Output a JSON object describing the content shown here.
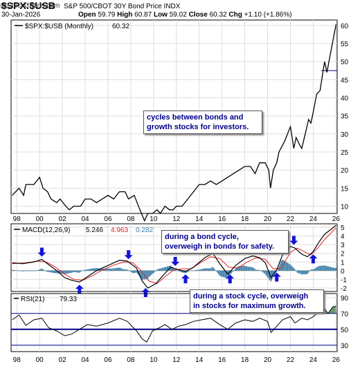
{
  "header": {
    "ticker": "$SPX:$USB",
    "name": "S&P 500/CBOT 30Y Bond Price INDX",
    "credit": "@StockCharts.com",
    "date": "30-Jan-2026",
    "open_label": "Open",
    "open": "59.79",
    "high_label": "High",
    "high": "60.87",
    "low_label": "Low",
    "low": "59.02",
    "close_label": "Close",
    "close": "60.32",
    "chg_label": "Chg",
    "chg": "+1.10 (+1.86%)"
  },
  "annotations": {
    "cycles": [
      "cycles between bonds and",
      "growth stocks for investors."
    ],
    "bond_cycle": [
      "during a bond cycle,",
      "overweigh in bonds for safety."
    ],
    "stock_cycle": [
      "during a stock cycle, overweigh",
      "in stocks for maximum growth."
    ]
  },
  "colors": {
    "price": "#000000",
    "macd": "#000000",
    "signal": "#e02020",
    "histogram": "#3a7ea8",
    "rsi": "#000000",
    "rsi_fill": "#6e9a6e",
    "arrow": "#1414d8",
    "horizontal_line": "#00008b",
    "grid": "#dddddd"
  },
  "chart_data": [
    {
      "type": "line",
      "title": "$SPX:$USB (Monthly) 60.32",
      "legend_label": "$SPX:$USB (Monthly)",
      "legend_value": "60.32",
      "x_ticks": [
        "98",
        "00",
        "02",
        "04",
        "06",
        "08",
        "10",
        "12",
        "14",
        "16",
        "18",
        "20",
        "22",
        "24",
        "26"
      ],
      "y_ticks": [
        10,
        15,
        20,
        25,
        30,
        35,
        40,
        45,
        50,
        55,
        60
      ],
      "ylim": [
        8,
        61.5
      ],
      "xlim": [
        1997.5,
        2026.1
      ],
      "grid": true,
      "horizontal_line": 47.5,
      "series": [
        {
          "x": [
            1997.6,
            1998.2,
            1998.6,
            1998.8,
            1999.5,
            2000.0,
            2000.3,
            2000.7,
            2001.0,
            2001.5,
            2001.8,
            2002.3,
            2002.6,
            2003.0,
            2003.6,
            2004.0,
            2004.5,
            2005.0,
            2005.5,
            2006.0,
            2006.5,
            2007.0,
            2007.5,
            2007.8,
            2008.3,
            2008.8,
            2009.2,
            2009.5,
            2009.9,
            2010.3,
            2010.6,
            2011.0,
            2011.4,
            2011.7,
            2012.0,
            2012.5,
            2013.0,
            2013.5,
            2014.0,
            2014.5,
            2015.0,
            2015.5,
            2016.0,
            2016.5,
            2017.0,
            2017.5,
            2018.0,
            2018.5,
            2018.9,
            2019.3,
            2019.8,
            2020.1,
            2020.25,
            2020.5,
            2020.8,
            2021.0,
            2021.5,
            2022.0,
            2022.3,
            2022.5,
            2022.8,
            2023.0,
            2023.3,
            2023.6,
            2023.8,
            2024.0,
            2024.3,
            2024.6,
            2024.9,
            2025.0,
            2025.2,
            2025.5,
            2025.8,
            2026.0
          ],
          "y": [
            13,
            15,
            13,
            16,
            16,
            18,
            15,
            14,
            12,
            11,
            12,
            10,
            9,
            10,
            10,
            12,
            12,
            11,
            12,
            13,
            12,
            14,
            14,
            12,
            13,
            9,
            6,
            8,
            8,
            9,
            8,
            10,
            9,
            9,
            10,
            10,
            12,
            14,
            16,
            16,
            17,
            16,
            17,
            18,
            19,
            20,
            21,
            21,
            19,
            22,
            22,
            20,
            15,
            20,
            22,
            25,
            28,
            32,
            26,
            29,
            27,
            26,
            30,
            34,
            33,
            36,
            41,
            42,
            48,
            50,
            47,
            52,
            57,
            60.3
          ]
        }
      ]
    },
    {
      "type": "line",
      "title": "MACD(12,26,9) 5.246, 4.963, 0.282",
      "indicator_label": "MACD(12,26,9)",
      "macd_value": "5.246",
      "signal_value": "4.963",
      "histogram_value": "0.282",
      "x_ticks": [
        "98",
        "00",
        "02",
        "04",
        "06",
        "08",
        "10",
        "12",
        "14",
        "16",
        "18",
        "20",
        "22",
        "24",
        "26"
      ],
      "y_ticks": [
        -2,
        -1,
        0,
        1,
        2,
        3,
        4,
        5
      ],
      "ylim": [
        -2.4,
        5.4
      ],
      "xlim": [
        1997.5,
        2026.1
      ],
      "series": [
        {
          "name": "MACD",
          "x": [
            1997.6,
            1998.5,
            1999.5,
            2000.2,
            2000.8,
            2001.5,
            2002.2,
            2002.8,
            2003.5,
            2004.2,
            2005.0,
            2006.0,
            2007.0,
            2007.7,
            2008.5,
            2009.0,
            2009.5,
            2010.2,
            2011.0,
            2011.5,
            2012.2,
            2012.8,
            2013.5,
            2014.5,
            2015.2,
            2015.8,
            2016.5,
            2017.2,
            2018.0,
            2018.7,
            2019.3,
            2019.8,
            2020.3,
            2020.8,
            2021.3,
            2022.0,
            2022.4,
            2023.0,
            2023.5,
            2024.0,
            2024.5,
            2025.0,
            2025.6,
            2026.0
          ],
          "y": [
            0.9,
            0.8,
            1.0,
            1.3,
            0.7,
            0.0,
            -0.8,
            -1.1,
            -1.3,
            -0.7,
            0.0,
            0.6,
            1.2,
            1.1,
            0.3,
            -1.2,
            -2.0,
            -1.5,
            -0.3,
            0.4,
            0.1,
            -0.1,
            0.4,
            1.5,
            2.0,
            0.8,
            -0.4,
            0.6,
            1.4,
            1.7,
            1.5,
            0.9,
            -0.8,
            0.1,
            1.8,
            2.8,
            2.6,
            1.9,
            1.6,
            2.2,
            3.3,
            4.2,
            4.8,
            5.25
          ]
        },
        {
          "name": "Signal",
          "x": [
            1997.6,
            1998.8,
            1999.8,
            2000.6,
            2001.4,
            2002.2,
            2003.0,
            2003.8,
            2004.6,
            2005.4,
            2006.4,
            2007.4,
            2008.2,
            2008.9,
            2009.6,
            2010.3,
            2011.0,
            2011.8,
            2012.5,
            2013.3,
            2014.2,
            2015.0,
            2015.8,
            2016.6,
            2017.4,
            2018.2,
            2019.0,
            2019.8,
            2020.5,
            2021.2,
            2022.0,
            2022.6,
            2023.2,
            2023.8,
            2024.4,
            2025.0,
            2025.6,
            2026.0
          ],
          "y": [
            0.8,
            0.9,
            1.1,
            1.0,
            0.4,
            -0.4,
            -1.0,
            -1.1,
            -0.6,
            0.0,
            0.6,
            1.0,
            0.9,
            0.0,
            -1.2,
            -1.5,
            -0.7,
            0.1,
            0.2,
            0.2,
            1.0,
            1.6,
            1.4,
            0.4,
            0.3,
            1.0,
            1.5,
            1.3,
            0.2,
            0.3,
            2.1,
            2.6,
            2.2,
            1.8,
            2.6,
            3.6,
            4.4,
            4.96
          ]
        }
      ]
    },
    {
      "type": "line",
      "title": "RSI(21) 79.33",
      "indicator_label": "RSI(21)",
      "value": "79.33",
      "x_ticks": [
        "98",
        "00",
        "02",
        "04",
        "06",
        "08",
        "10",
        "12",
        "14",
        "16",
        "18",
        "20",
        "22",
        "24",
        "26"
      ],
      "y_ticks": [
        30,
        50,
        70,
        90
      ],
      "ylim": [
        22,
        95
      ],
      "xlim": [
        1997.5,
        2026.1
      ],
      "overbought": 70,
      "oversold": 30,
      "midline": 50,
      "series": [
        {
          "name": "RSI",
          "x": [
            1997.6,
            1998.2,
            1998.8,
            1999.5,
            2000.2,
            2000.8,
            2001.5,
            2002.2,
            2002.8,
            2003.5,
            2004.2,
            2005.0,
            2006.0,
            2007.0,
            2007.7,
            2008.5,
            2009.0,
            2009.4,
            2009.9,
            2010.5,
            2011.0,
            2011.6,
            2012.2,
            2012.8,
            2013.5,
            2014.2,
            2015.0,
            2015.8,
            2016.5,
            2017.2,
            2018.0,
            2018.7,
            2019.3,
            2020.0,
            2020.3,
            2020.8,
            2021.3,
            2022.0,
            2022.4,
            2023.0,
            2023.5,
            2024.0,
            2024.5,
            2025.0,
            2025.3,
            2025.7,
            2026.0
          ],
          "y": [
            62,
            68,
            55,
            62,
            64,
            52,
            48,
            42,
            44,
            50,
            56,
            54,
            58,
            64,
            60,
            48,
            38,
            34,
            48,
            52,
            56,
            50,
            54,
            56,
            60,
            62,
            64,
            56,
            50,
            58,
            62,
            60,
            64,
            60,
            46,
            54,
            62,
            66,
            58,
            64,
            62,
            66,
            72,
            76,
            70,
            78,
            79.3
          ]
        }
      ]
    }
  ]
}
